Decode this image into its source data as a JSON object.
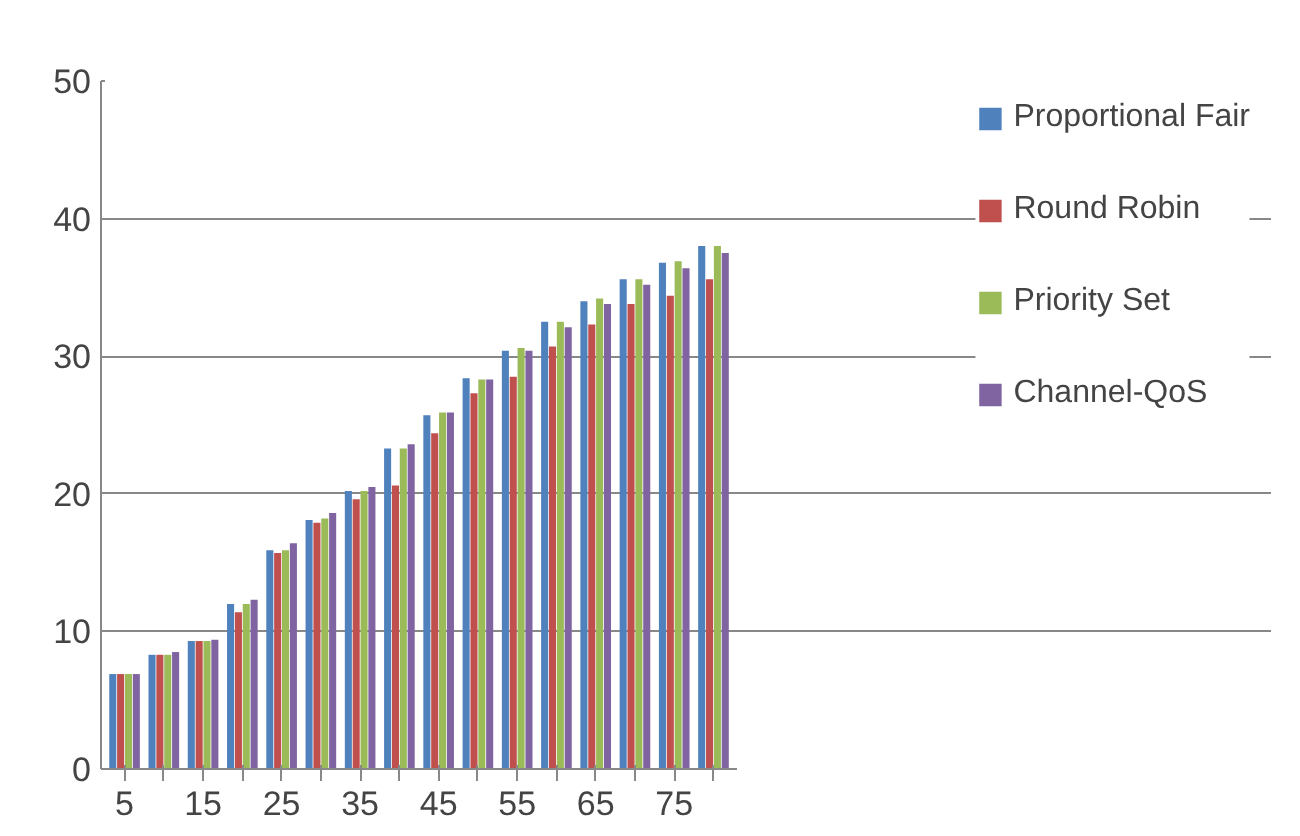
{
  "chart_data": {
    "type": "bar",
    "categories": [
      "5",
      null,
      "15",
      null,
      "25",
      null,
      "35",
      null,
      "45",
      null,
      "55",
      null,
      "65",
      null,
      "75",
      null
    ],
    "series": [
      {
        "name": "Proportional Fair",
        "color": "#4f81bd",
        "values": [
          6.9,
          8.3,
          9.3,
          12.0,
          15.9,
          18.1,
          20.2,
          23.3,
          25.7,
          28.4,
          30.4,
          32.5,
          34.0,
          35.6,
          36.8,
          38.0
        ]
      },
      {
        "name": "Round Robin",
        "color": "#c0504d",
        "values": [
          6.9,
          8.3,
          9.3,
          11.4,
          15.7,
          17.9,
          19.6,
          20.6,
          24.4,
          27.3,
          28.5,
          30.7,
          32.3,
          33.8,
          34.4,
          35.6
        ]
      },
      {
        "name": "Priority Set",
        "color": "#9bbb59",
        "values": [
          6.9,
          8.3,
          9.3,
          12.0,
          15.9,
          18.2,
          20.2,
          23.3,
          25.9,
          28.3,
          30.6,
          32.5,
          34.2,
          35.6,
          36.9,
          38.0
        ]
      },
      {
        "name": "Channel-QoS",
        "color": "#8064a2",
        "values": [
          6.9,
          8.5,
          9.4,
          12.3,
          16.4,
          18.6,
          20.5,
          23.6,
          25.9,
          28.3,
          30.4,
          32.1,
          33.8,
          35.2,
          36.4,
          37.5
        ]
      }
    ],
    "ylim": [
      0,
      50
    ],
    "yticks": [
      0,
      10,
      20,
      30,
      40,
      50
    ],
    "grid": "y",
    "legend": "right"
  }
}
